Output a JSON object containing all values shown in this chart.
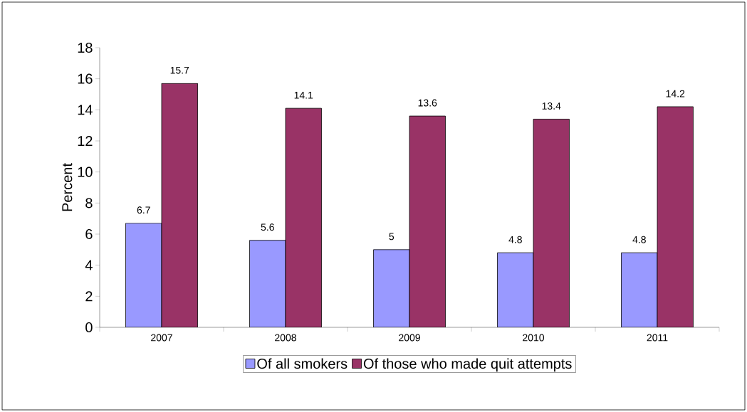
{
  "chart_data": {
    "type": "bar",
    "ylabel": "Percent",
    "categories": [
      "2007",
      "2008",
      "2009",
      "2010",
      "2011"
    ],
    "series": [
      {
        "name": "Of all smokers",
        "color": "#9999ff",
        "values": [
          6.7,
          5.6,
          5,
          4.8,
          4.8
        ]
      },
      {
        "name": "Of those who made quit attempts",
        "color": "#993366",
        "values": [
          15.7,
          14.1,
          13.6,
          13.4,
          14.2
        ]
      }
    ],
    "ylim": [
      0,
      18
    ],
    "yticks": [
      0,
      2,
      4,
      6,
      8,
      10,
      12,
      14,
      16,
      18
    ],
    "grid": false,
    "legend": "bottom",
    "data_labels": true
  }
}
